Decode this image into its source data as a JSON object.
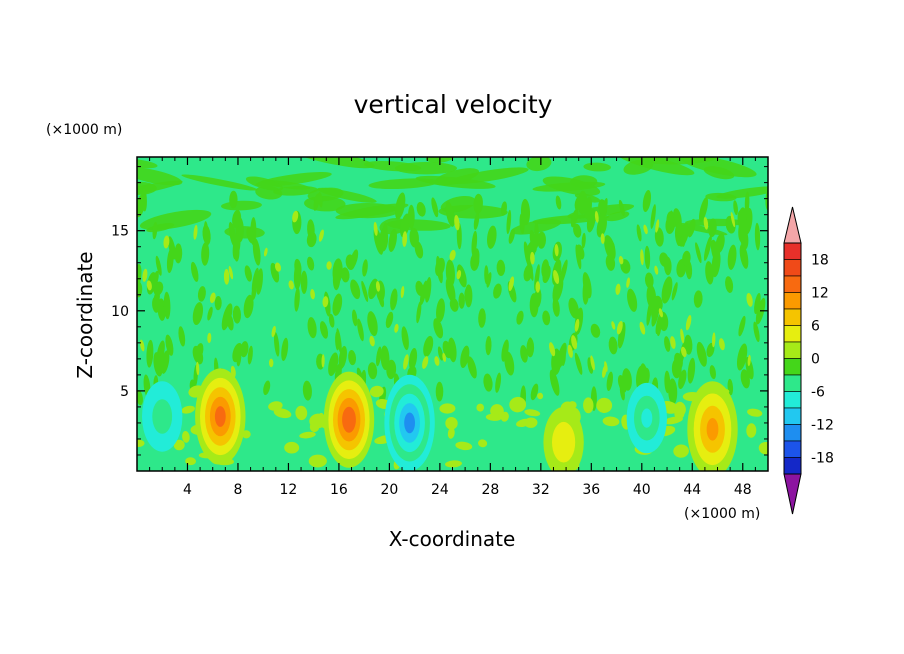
{
  "chart_data": {
    "type": "heatmap",
    "title": "vertical velocity",
    "xlabel": "X-coordinate",
    "ylabel": "Z-coordinate",
    "x_unit": "(×1000 m)",
    "y_unit": "(×1000 m)",
    "xlim": [
      0,
      50
    ],
    "ylim": [
      0,
      19.6
    ],
    "x_ticks": [
      4,
      8,
      12,
      16,
      20,
      24,
      28,
      32,
      36,
      40,
      44,
      48
    ],
    "y_ticks": [
      5,
      10,
      15
    ],
    "colorbar": {
      "ticks": [
        18,
        12,
        6,
        0,
        -6,
        -12,
        -18
      ],
      "levels": [
        21,
        18,
        15,
        12,
        9,
        6,
        3,
        0,
        -3,
        -6,
        -9,
        -12,
        -15,
        -18,
        -21
      ],
      "colors": [
        "#e8302a",
        "#f04a18",
        "#f86a10",
        "#fb9a00",
        "#f5c400",
        "#e6ee10",
        "#a6ea18",
        "#44d61a",
        "#2ee88a",
        "#22ecd8",
        "#22c8f0",
        "#1e8ef0",
        "#1c54ea",
        "#1428c8",
        "#1a14a0",
        "#3a1488"
      ],
      "over_color": "#f4a6a8",
      "under_color": "#8c14a0"
    },
    "features": [
      {
        "x": 6.6,
        "z": 3.4,
        "peak": 13
      },
      {
        "x": 16.8,
        "z": 3.2,
        "peak": 14
      },
      {
        "x": 21.6,
        "z": 3.0,
        "peak": -13
      },
      {
        "x": 45.6,
        "z": 2.6,
        "peak": 10
      },
      {
        "x": 33.8,
        "z": 1.8,
        "peak": 6
      },
      {
        "x": 2.0,
        "z": 3.4,
        "peak": -5
      },
      {
        "x": 40.4,
        "z": 3.3,
        "peak": -7
      }
    ]
  }
}
